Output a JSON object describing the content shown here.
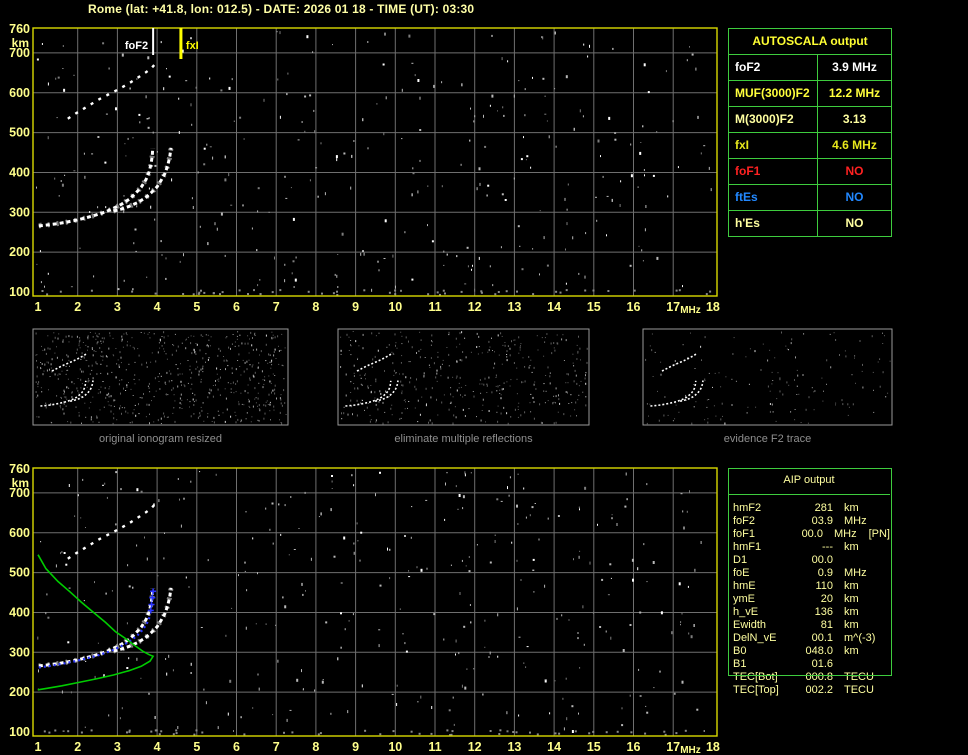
{
  "title": "Rome (lat: +41.8, lon: 012.5) - DATE: 2026 01 18 - TIME (UT): 03:30",
  "colors": {
    "background": "#000000",
    "axis_border_yellow": "#d9d900",
    "axis_label_yellow": "#ffff8c",
    "grid_gray": "#6f6f6f",
    "panel_green": "#3ecc3e",
    "trace_white": "#ffffff",
    "trace_gray": "#9a9a9a",
    "profile_green": "#00cc00",
    "fitted_blue": "#2b35ff",
    "caption_gray": "#8f8f8f",
    "fof2_marker": "#ffffff",
    "fxi_marker": "#ffff00"
  },
  "autoscala": {
    "title": "AUTOSCALA output",
    "rows": [
      {
        "label": "foF2",
        "value": "3.9 MHz",
        "color": "#ffffff"
      },
      {
        "label": "MUF(3000)F2",
        "value": "12.2 MHz",
        "color": "#ffff3c"
      },
      {
        "label": "M(3000)F2",
        "value": "3.13",
        "color": "#ffffa0"
      },
      {
        "label": "fxI",
        "value": "4.6 MHz",
        "color": "#e8e81c"
      },
      {
        "label": "foF1",
        "value": "NO",
        "color": "#ff2222"
      },
      {
        "label": "ftEs",
        "value": "NO",
        "color": "#2288ff"
      },
      {
        "label": "h'Es",
        "value": "NO",
        "color": "#ffffa0"
      }
    ]
  },
  "aip": {
    "title": "AIP output",
    "rows": [
      {
        "label": "hmF2",
        "value": "281",
        "unit": "km",
        "note": ""
      },
      {
        "label": "foF2",
        "value": "03.9",
        "unit": "MHz",
        "note": ""
      },
      {
        "label": "foF1",
        "value": "00.0",
        "unit": "MHz",
        "note": "[PN]"
      },
      {
        "label": "hmF1",
        "value": "---",
        "unit": "km",
        "note": ""
      },
      {
        "label": "D1",
        "value": "00.0",
        "unit": "",
        "note": ""
      },
      {
        "label": "foE",
        "value": "0.9",
        "unit": "MHz",
        "note": ""
      },
      {
        "label": "hmE",
        "value": "110",
        "unit": "km",
        "note": ""
      },
      {
        "label": "ymE",
        "value": "20",
        "unit": "km",
        "note": ""
      },
      {
        "label": "h_vE",
        "value": "136",
        "unit": "km",
        "note": ""
      },
      {
        "label": "Ewidth",
        "value": "81",
        "unit": "km",
        "note": ""
      },
      {
        "label": "DelN_vE",
        "value": "00.1",
        "unit": "m^(-3)",
        "note": ""
      },
      {
        "label": "B0",
        "value": "048.0",
        "unit": "km",
        "note": ""
      },
      {
        "label": "B1",
        "value": "01.6",
        "unit": "",
        "note": ""
      },
      {
        "label": "TEC[Bot]",
        "value": "000.8",
        "unit": "TECU",
        "note": ""
      },
      {
        "label": "TEC[Top]",
        "value": "002.2",
        "unit": "TECU",
        "note": ""
      }
    ]
  },
  "thumbnails": [
    {
      "caption": "original ionogram resized"
    },
    {
      "caption": "eliminate multiple reflections"
    },
    {
      "caption": "evidence F2 trace"
    }
  ],
  "chart_data": {
    "type": "scatter",
    "title": "Ionogram: virtual height (km) vs frequency (MHz)",
    "xlabel": "MHz",
    "ylabel": "km",
    "xlim": [
      1,
      18
    ],
    "ylim": [
      100,
      760
    ],
    "grid": true,
    "x_ticks": [
      1,
      2,
      3,
      4,
      5,
      6,
      7,
      8,
      9,
      10,
      11,
      12,
      13,
      14,
      15,
      16,
      17,
      18
    ],
    "y_ticks": [
      760,
      700,
      600,
      500,
      400,
      300,
      200,
      100
    ],
    "markers": [
      {
        "name": "foF2",
        "label": "foF2",
        "f_mhz": 3.9,
        "color": "#ffffff"
      },
      {
        "name": "fxI",
        "label": "fxI",
        "f_mhz": 4.6,
        "color": "#ffff00"
      }
    ],
    "traces": {
      "f2_ordinary": [
        [
          1.02,
          266
        ],
        [
          1.2,
          268
        ],
        [
          1.45,
          271
        ],
        [
          1.7,
          275
        ],
        [
          1.95,
          280
        ],
        [
          2.2,
          286
        ],
        [
          2.45,
          293
        ],
        [
          2.7,
          301
        ],
        [
          2.9,
          310
        ],
        [
          3.1,
          320
        ],
        [
          3.3,
          333
        ],
        [
          3.45,
          347
        ],
        [
          3.6,
          363
        ],
        [
          3.72,
          382
        ],
        [
          3.8,
          402
        ],
        [
          3.85,
          422
        ],
        [
          3.88,
          443
        ],
        [
          3.89,
          460
        ]
      ],
      "f2_extraordinary": [
        [
          2.9,
          303
        ],
        [
          3.1,
          308
        ],
        [
          3.3,
          315
        ],
        [
          3.5,
          324
        ],
        [
          3.7,
          336
        ],
        [
          3.85,
          349
        ],
        [
          4.0,
          364
        ],
        [
          4.1,
          380
        ],
        [
          4.2,
          398
        ],
        [
          4.27,
          418
        ],
        [
          4.32,
          440
        ],
        [
          4.35,
          462
        ]
      ],
      "second_reflection": [
        [
          1.75,
          535
        ],
        [
          1.95,
          548
        ],
        [
          2.15,
          560
        ],
        [
          2.35,
          572
        ],
        [
          2.55,
          584
        ],
        [
          2.8,
          597
        ],
        [
          3.05,
          610
        ],
        [
          3.3,
          624
        ],
        [
          3.5,
          637
        ],
        [
          3.7,
          650
        ],
        [
          3.85,
          661
        ],
        [
          3.93,
          670
        ]
      ],
      "fitted_trace": [
        [
          1.02,
          262
        ],
        [
          1.3,
          266
        ],
        [
          1.6,
          271
        ],
        [
          1.9,
          277
        ],
        [
          2.2,
          284
        ],
        [
          2.5,
          292
        ],
        [
          2.8,
          302
        ],
        [
          3.05,
          313
        ],
        [
          3.3,
          327
        ],
        [
          3.5,
          342
        ],
        [
          3.65,
          358
        ],
        [
          3.75,
          374
        ],
        [
          3.82,
          391
        ]
      ],
      "fitted_crosses": [
        [
          3.84,
          405
        ],
        [
          3.86,
          420
        ],
        [
          3.88,
          437
        ],
        [
          3.9,
          453
        ]
      ],
      "density_profile": [
        [
          1.0,
          545
        ],
        [
          1.2,
          510
        ],
        [
          1.5,
          478
        ],
        [
          1.8,
          452
        ],
        [
          2.1,
          425
        ],
        [
          2.4,
          400
        ],
        [
          2.7,
          375
        ],
        [
          2.95,
          352
        ],
        [
          3.2,
          335
        ],
        [
          3.45,
          316
        ],
        [
          3.65,
          302
        ],
        [
          3.8,
          294
        ],
        [
          3.9,
          290
        ],
        [
          3.82,
          278
        ],
        [
          3.6,
          265
        ],
        [
          3.3,
          254
        ],
        [
          2.9,
          243
        ],
        [
          2.45,
          233
        ],
        [
          2.0,
          224
        ],
        [
          1.6,
          216
        ],
        [
          1.25,
          210
        ],
        [
          1.0,
          206
        ]
      ]
    },
    "plots": [
      {
        "name": "top-ionogram",
        "show": [
          "f2_ordinary",
          "f2_extraordinary",
          "second_reflection"
        ],
        "markers": true
      },
      {
        "name": "bottom-ionogram",
        "show": [
          "f2_ordinary",
          "f2_extraordinary",
          "second_reflection",
          "fitted_trace",
          "density_profile"
        ],
        "markers": false
      }
    ]
  }
}
